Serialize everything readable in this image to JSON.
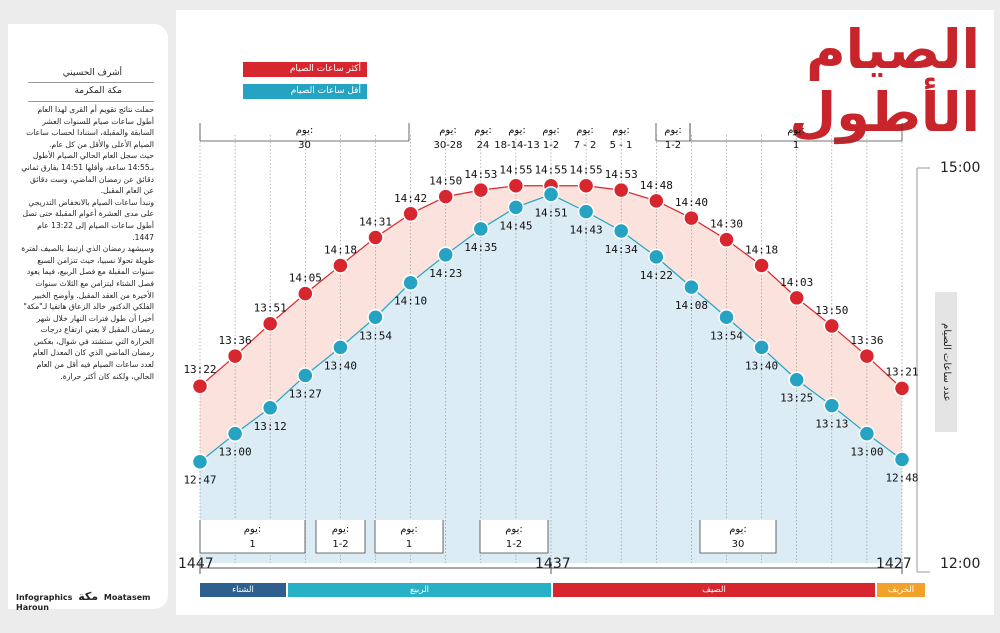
{
  "title": "الصيام الأطول",
  "legend": {
    "max_label": "أكثر ساعات الصيام",
    "min_label": "أقل ساعات الصيام",
    "max_color": "#d7262e",
    "min_color": "#26a3c2"
  },
  "sidebar": {
    "author": "أشرف الحسيني",
    "city": "مكة المكرمة",
    "article": "حملت نتائج تقويم أم القرى لهذا العام أطول ساعات صيام للسنوات العشر السابقة والمقبلة، استنادا لحساب ساعات الصيام الأعلى والأقل من كل عام.\nحيث سجل العام الحالي الصيام الأطول بـ14:55 ساعة، وأقلها 14:51 بفارق ثماني دقائق عن رمضان الماضي، وست دقائق عن العام المقبل.\nوتبدأ ساعات الصيام بالانخفاض التدريجي على مدى العشرة أعوام المقبلة حتى تصل أطول ساعات الصيام إلى 13:22 عام 1447.\nوسيشهد رمضان الذي ارتبط بالصيف لفترة طويلة تحولا نسبيا، حيث تتزامن السبع سنوات المقبلة مع فصل الربيع، فيما يعود فصل الشتاء ليتزامن مع الثلاث سنوات الأخيرة من العقد المقبل. وأوضح الخبير الفلكي الدكتور خالد الزعاق هاتفيا لـ\"مكة\" أخيرا أن طول فترات النهار خلال شهر رمضان المقبل لا يعني ارتفاع درجات الحرارة التي ستشتد في شوال، بعكس رمضان الماضي الذي كان المعدل العام لعدد ساعات الصيام فيه أقل من العام الحالي، ولكنه كان أكثر حرارة.",
    "credit_left": "Infographics",
    "credit_logo": "مكة",
    "credit_right": "Moatasem Haroun"
  },
  "y_axis": {
    "title": "عدد ساعات الصيام",
    "top_label": "15:00",
    "bottom_label": "12:00"
  },
  "x_axis": {
    "left_label": "1447",
    "center_label": "1437",
    "right_label": "1427"
  },
  "seasons": [
    {
      "name": "الشتاء",
      "color": "#2e5f8f"
    },
    {
      "name": "الربيع",
      "color": "#27b1c7"
    },
    {
      "name": "الصيف",
      "color": "#d7262e"
    },
    {
      "name": "الخريف",
      "color": "#f2a22b"
    }
  ],
  "top_annotations": [
    {
      "prefix": "يوم:",
      "days": "30"
    },
    {
      "prefix": "يوم:",
      "days": "30-28"
    },
    {
      "prefix": "يوم:",
      "days": "24"
    },
    {
      "prefix": "يوم:",
      "days": "18-14-13"
    },
    {
      "prefix": "يوم:",
      "days": "1-2"
    },
    {
      "prefix": "يوم:",
      "days": "7 - 2"
    },
    {
      "prefix": "يوم:",
      "days": "5 - 1"
    },
    {
      "prefix": "يوم:",
      "days": "1-2"
    },
    {
      "prefix": "يوم:",
      "days": "1"
    }
  ],
  "bottom_annotations": [
    {
      "prefix": "يوم:",
      "days": "1"
    },
    {
      "prefix": "يوم:",
      "days": "1-2"
    },
    {
      "prefix": "يوم:",
      "days": "1"
    },
    {
      "prefix": "يوم:",
      "days": "1-2"
    },
    {
      "prefix": "يوم:",
      "days": "30"
    }
  ],
  "chart_data": {
    "type": "line",
    "title": "الصيام الأطول",
    "ylabel": "عدد ساعات الصيام",
    "ylim_hours": [
      12,
      15
    ],
    "x_direction": "right-to-left (1427 on right, 1447 on left)",
    "series": [
      {
        "name": "أكثر ساعات الصيام",
        "labels": [
          "13:22",
          "13:36",
          "13:51",
          "14:05",
          "14:18",
          "14:31",
          "14:42",
          "14:50",
          "14:53",
          "14:55",
          "14:55",
          "14:55",
          "14:53",
          "14:48",
          "14:40",
          "14:30",
          "14:18",
          "14:03",
          "13:50",
          "13:36",
          "13:21"
        ],
        "values": [
          13.367,
          13.6,
          13.85,
          14.083,
          14.3,
          14.517,
          14.7,
          14.833,
          14.883,
          14.917,
          14.917,
          14.917,
          14.883,
          14.8,
          14.667,
          14.5,
          14.3,
          14.05,
          13.833,
          13.6,
          13.35
        ]
      },
      {
        "name": "أقل ساعات الصيام",
        "labels": [
          "12:47",
          "13:00",
          "13:12",
          "13:27",
          "13:40",
          "13:54",
          "14:10",
          "14:23",
          "14:35",
          "14:45",
          "14:51",
          "14:43",
          "14:34",
          "14:22",
          "14:08",
          "13:54",
          "13:40",
          "13:25",
          "13:13",
          "13:00",
          "12:48"
        ],
        "values": [
          12.783,
          13.0,
          13.2,
          13.45,
          13.667,
          13.9,
          14.167,
          14.383,
          14.583,
          14.75,
          14.85,
          14.717,
          14.567,
          14.367,
          14.133,
          13.9,
          13.667,
          13.417,
          13.217,
          13.0,
          12.8
        ]
      }
    ]
  }
}
